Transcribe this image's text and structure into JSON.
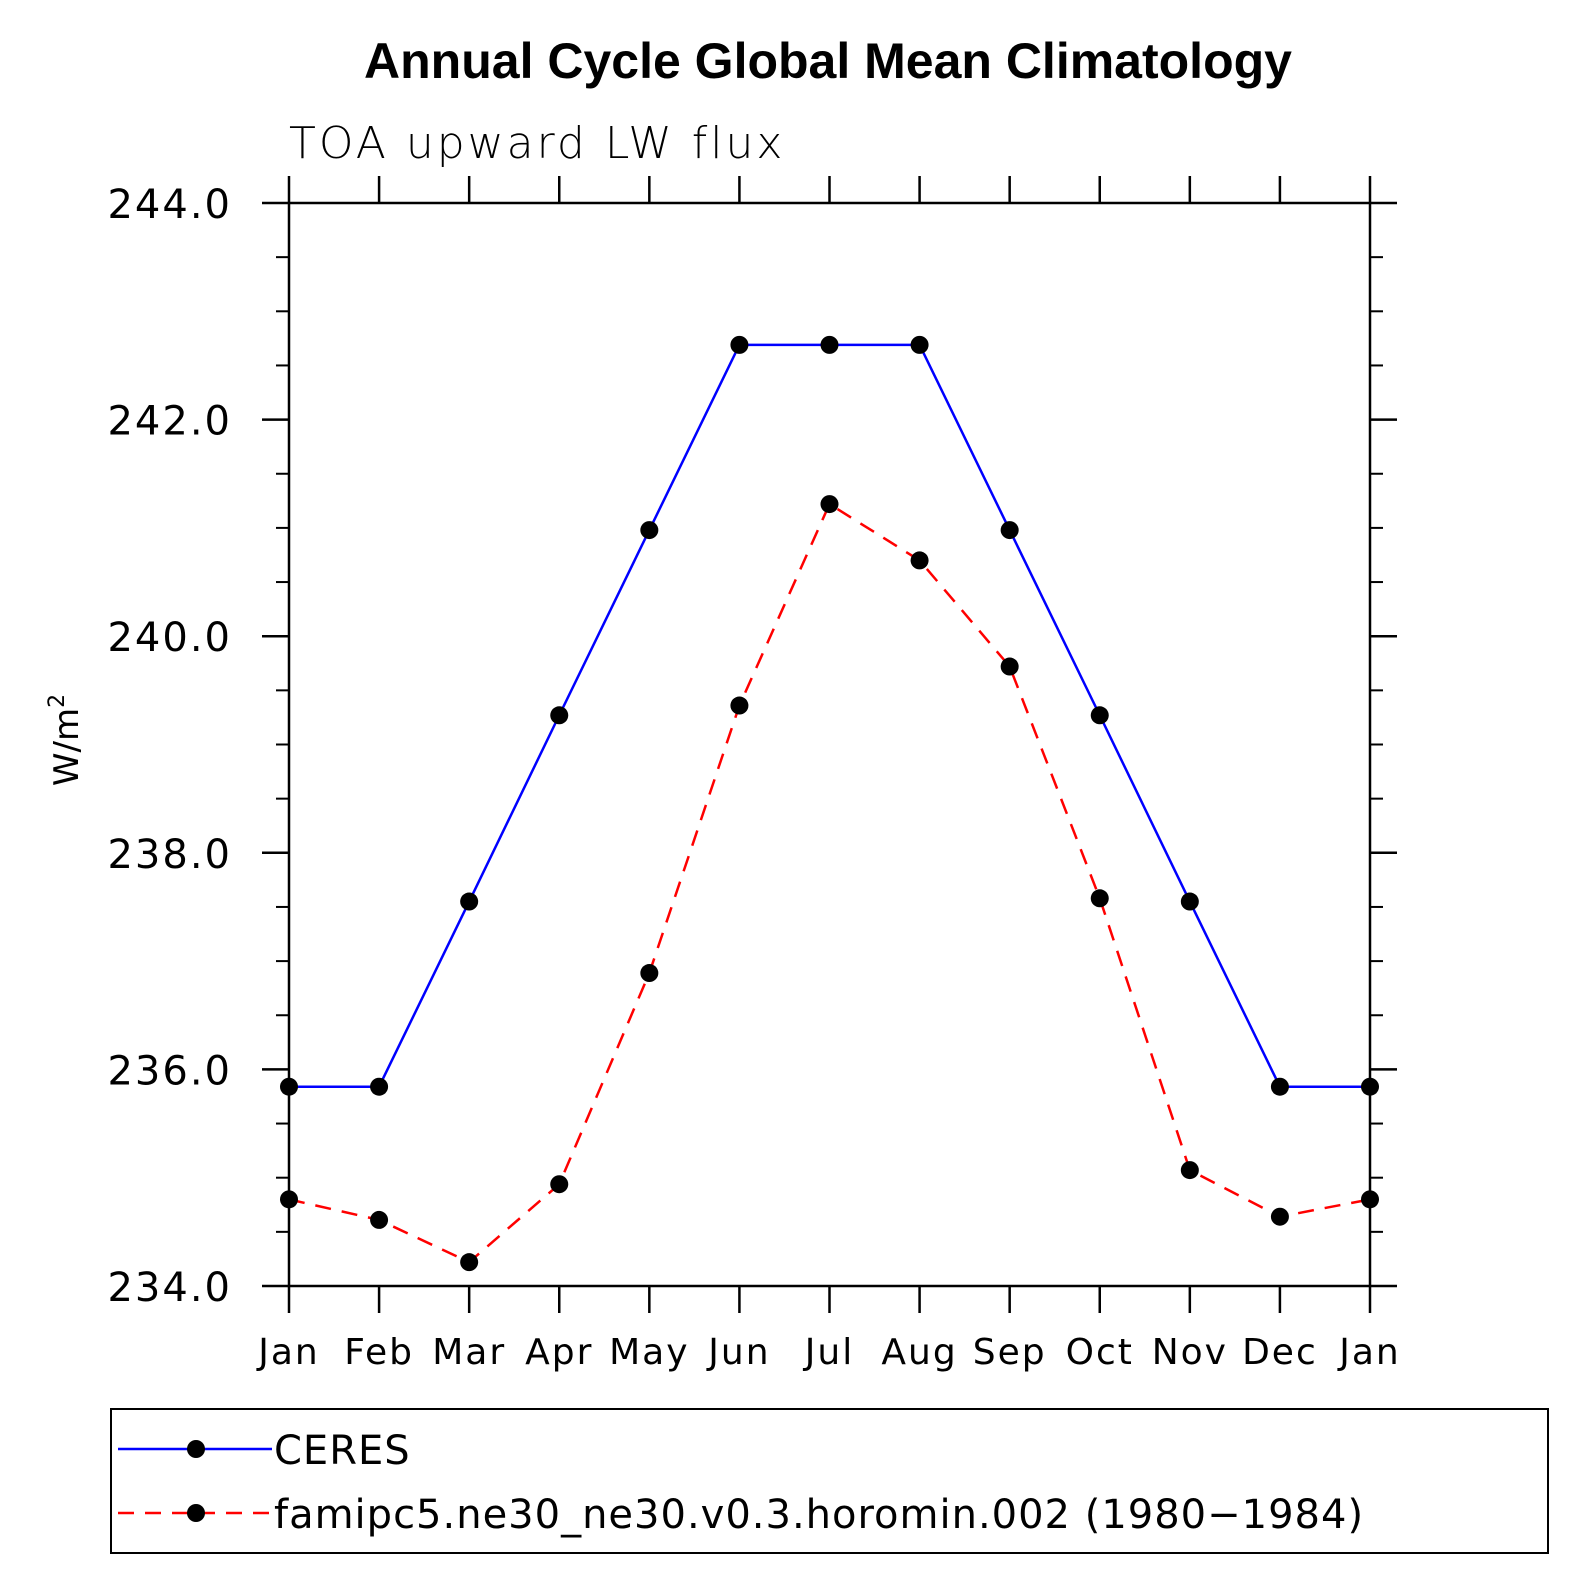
{
  "chart_data": {
    "type": "line",
    "title": "Annual Cycle Global Mean Climatology",
    "subtitle": "TOA upward LW flux",
    "ylabel": "W/m",
    "ylabel_sup": "2",
    "xlabel": "",
    "categories": [
      "Jan",
      "Feb",
      "Mar",
      "Apr",
      "May",
      "Jun",
      "Jul",
      "Aug",
      "Sep",
      "Oct",
      "Nov",
      "Dec",
      "Jan"
    ],
    "ylim": [
      234.0,
      244.0
    ],
    "yticks": [
      "244.0",
      "242.0",
      "240.0",
      "238.0",
      "236.0",
      "234.0"
    ],
    "ytick_values": [
      244.0,
      242.0,
      240.0,
      238.0,
      236.0,
      234.0
    ],
    "minor_ytick_step": 0.5,
    "grid": false,
    "legend_position": "bottom",
    "series": [
      {
        "name": "CERES",
        "color": "#0000ff",
        "dash": "solid",
        "marker_color": "#000000",
        "values": [
          235.84,
          235.84,
          237.55,
          239.27,
          240.98,
          242.69,
          242.69,
          242.69,
          240.98,
          239.27,
          237.55,
          235.84,
          235.84
        ]
      },
      {
        "name": "famipc5.ne30_ne30.v0.3.horomin.002 (1980−1984)",
        "color": "#ff0000",
        "dash": "dashed",
        "marker_color": "#000000",
        "values": [
          234.8,
          234.61,
          234.22,
          234.94,
          236.89,
          239.36,
          241.22,
          240.7,
          239.72,
          237.58,
          235.07,
          234.64,
          234.8
        ]
      }
    ]
  }
}
